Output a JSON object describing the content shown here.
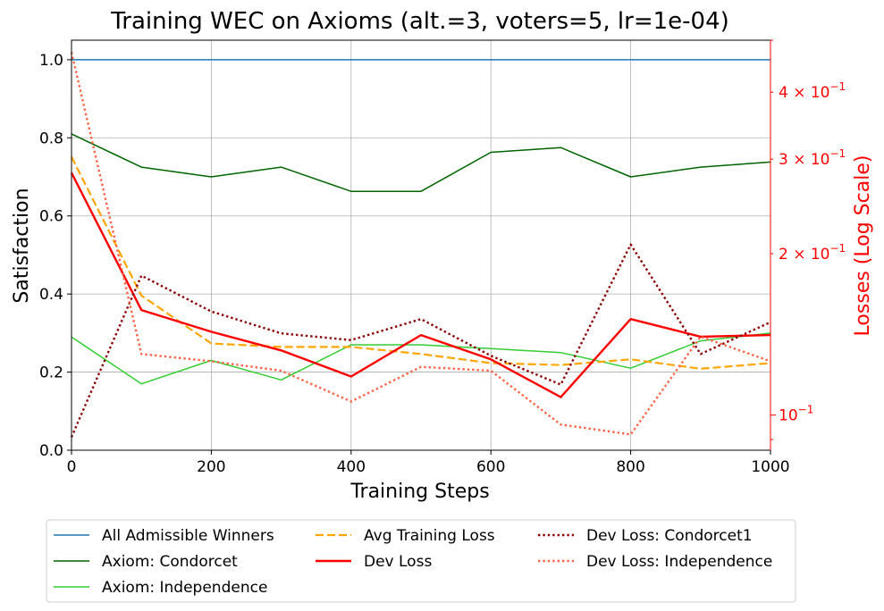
{
  "chart_data": {
    "type": "line",
    "title": "Training WEC on Axioms (alt.=3, voters=5, lr=1e-04)",
    "xlabel": "Training Steps",
    "ylabel": "Satisfaction",
    "y2label": "Losses (Log Scale)",
    "xlim": [
      0,
      1000
    ],
    "ylim": [
      0,
      1.05
    ],
    "y2lim": [
      0.086,
      0.5
    ],
    "y2scale": "log",
    "grid": true,
    "legend_position": "bottom-center, outside plot, 3 columns",
    "x_ticks": [
      0,
      200,
      400,
      600,
      800,
      1000
    ],
    "x_tick_labels": [
      "0",
      "200",
      "400",
      "600",
      "800",
      "1000"
    ],
    "y_ticks": [
      0,
      0.2,
      0.4,
      0.6,
      0.8,
      1.0
    ],
    "y_tick_labels": [
      "0.0",
      "0.2",
      "0.4",
      "0.6",
      "0.8",
      "1.0"
    ],
    "y2_major_ticks": [
      0.1
    ],
    "y2_minor_ticks": [
      0.2,
      0.3,
      0.4
    ],
    "y2_tick_labels": [
      {
        "value": 0.4,
        "mant": "4",
        "exp": "−1"
      },
      {
        "value": 0.3,
        "mant": "3",
        "exp": "−1"
      },
      {
        "value": 0.2,
        "mant": "2",
        "exp": "−1"
      },
      {
        "value": 0.1,
        "mant": "",
        "exp": "−1"
      }
    ],
    "x": [
      0,
      100,
      200,
      300,
      400,
      500,
      600,
      700,
      800,
      900,
      1000
    ],
    "series": [
      {
        "name": "All Admissible Winners",
        "axis": "left",
        "color": "#1f77b4",
        "style": "solid",
        "width": 1.5,
        "values": [
          1.0,
          1.0,
          1.0,
          1.0,
          1.0,
          1.0,
          1.0,
          1.0,
          1.0,
          1.0,
          1.0
        ]
      },
      {
        "name": "Axiom: Condorcet",
        "axis": "left",
        "color": "#006400",
        "style": "solid",
        "width": 1.5,
        "values": [
          0.81,
          0.725,
          0.7,
          0.725,
          0.663,
          0.663,
          0.763,
          0.775,
          0.7,
          0.725,
          0.738
        ]
      },
      {
        "name": "Axiom: Independence",
        "axis": "left",
        "color": "#32cd32",
        "style": "solid",
        "width": 1.5,
        "values": [
          0.29,
          0.17,
          0.23,
          0.18,
          0.27,
          0.27,
          0.26,
          0.25,
          0.21,
          0.28,
          0.3
        ]
      },
      {
        "name": "Avg Training Loss",
        "axis": "right",
        "color": "#ffa500",
        "style": "dashed",
        "width": 2.2,
        "values": [
          0.303,
          0.167,
          0.136,
          0.134,
          0.134,
          0.13,
          0.125,
          0.124,
          0.127,
          0.122,
          0.125
        ]
      },
      {
        "name": "Dev Loss",
        "axis": "right",
        "color": "#ff0000",
        "style": "solid",
        "width": 2.4,
        "values": [
          0.283,
          0.157,
          0.143,
          0.132,
          0.118,
          0.141,
          0.127,
          0.108,
          0.151,
          0.14,
          0.141
        ]
      },
      {
        "name": "Dev Loss: Condorcet1",
        "axis": "right",
        "color": "#8b0000",
        "style": "dotted",
        "width": 2.4,
        "values": [
          0.091,
          0.182,
          0.156,
          0.142,
          0.138,
          0.151,
          0.129,
          0.114,
          0.208,
          0.13,
          0.149
        ]
      },
      {
        "name": "Dev Loss: Independence",
        "axis": "right",
        "color": "#ff6347",
        "style": "dotted",
        "width": 2.4,
        "values": [
          0.475,
          0.13,
          0.126,
          0.121,
          0.106,
          0.123,
          0.121,
          0.096,
          0.092,
          0.14,
          0.126
        ]
      }
    ]
  }
}
